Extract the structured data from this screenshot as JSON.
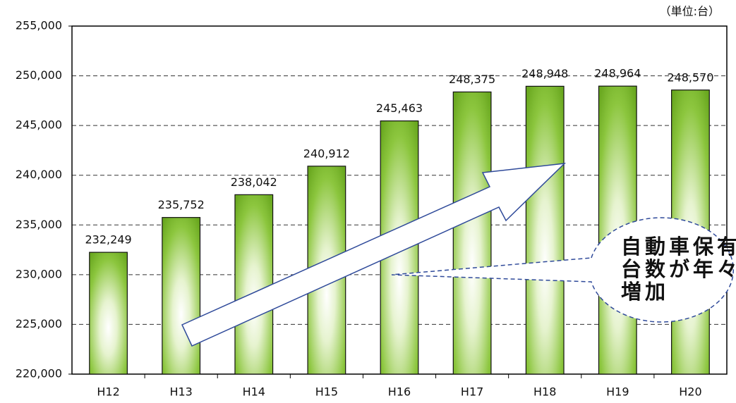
{
  "chart_data": {
    "type": "bar",
    "unit_note": "（単位:台）",
    "annotation": [
      "自動車保有",
      "台数が年々",
      "増加"
    ],
    "categories": [
      "H12",
      "H13",
      "H14",
      "H15",
      "H16",
      "H17",
      "H18",
      "H19",
      "H20"
    ],
    "values": [
      232249,
      235752,
      238042,
      240912,
      245463,
      248375,
      248948,
      248964,
      248570
    ],
    "value_labels": [
      "232,249",
      "235,752",
      "238,042",
      "240,912",
      "245,463",
      "248,375",
      "248,948",
      "248,964",
      "248,570"
    ],
    "color": "#7ab929",
    "ylim": [
      220000,
      255000
    ],
    "yticks": [
      {
        "value": 220000,
        "label": "220,000"
      },
      {
        "value": 225000,
        "label": "225,000"
      },
      {
        "value": 230000,
        "label": "230,000"
      },
      {
        "value": 235000,
        "label": "235,000"
      },
      {
        "value": 240000,
        "label": "240,000"
      },
      {
        "value": 245000,
        "label": "245,000"
      },
      {
        "value": 250000,
        "label": "250,000"
      },
      {
        "value": 255000,
        "label": "255,000"
      }
    ],
    "grid": true
  }
}
